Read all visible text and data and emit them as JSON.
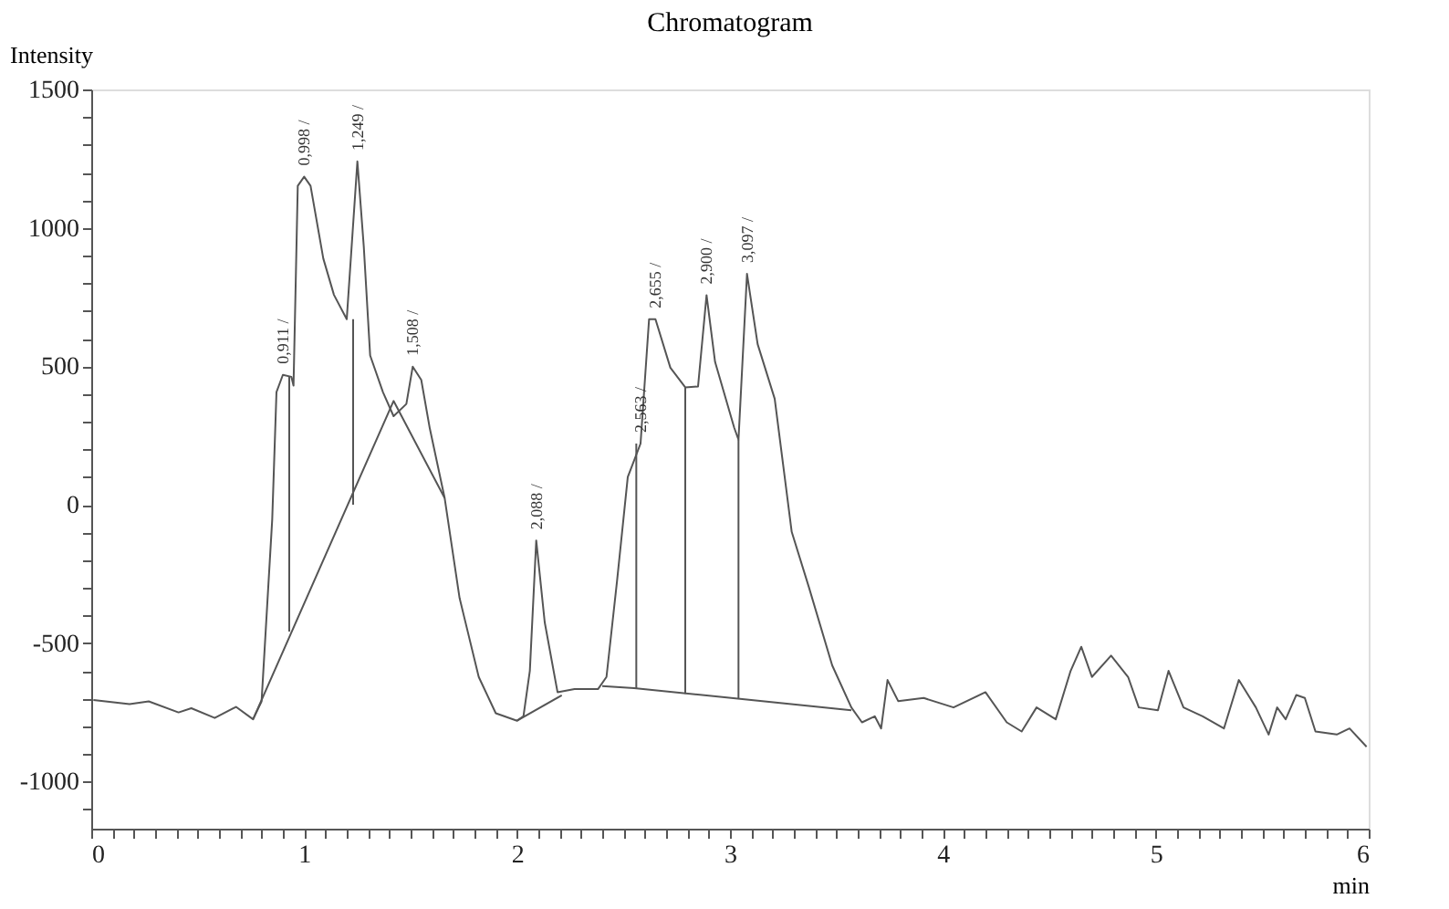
{
  "chart_data": {
    "type": "line",
    "title": "Chromatogram",
    "xlabel": "min",
    "ylabel": "Intensity",
    "xlim": [
      0,
      6
    ],
    "ylim": [
      -1170,
      1500
    ],
    "xticks": [
      0,
      {
        "value": 0.1,
        "label": null
      },
      {
        "value": 0.2,
        "label": null
      },
      {
        "value": 0.3,
        "label": null
      },
      {
        "value": 0.4,
        "label": null
      },
      {
        "value": 0.5,
        "label": null
      },
      {
        "value": 0.6,
        "label": null
      },
      {
        "value": 0.7,
        "label": null
      },
      {
        "value": 0.8,
        "label": null
      },
      {
        "value": 0.9,
        "label": null
      },
      1,
      {
        "value": 1.1,
        "label": null
      },
      {
        "value": 1.2,
        "label": null
      },
      {
        "value": 1.3,
        "label": null
      },
      {
        "value": 1.4,
        "label": null
      },
      {
        "value": 1.5,
        "label": null
      },
      {
        "value": 1.6,
        "label": null
      },
      {
        "value": 1.7,
        "label": null
      },
      {
        "value": 1.8,
        "label": null
      },
      {
        "value": 1.9,
        "label": null
      },
      2,
      {
        "value": 2.1,
        "label": null
      },
      {
        "value": 2.2,
        "label": null
      },
      {
        "value": 2.3,
        "label": null
      },
      {
        "value": 2.4,
        "label": null
      },
      {
        "value": 2.5,
        "label": null
      },
      {
        "value": 2.6,
        "label": null
      },
      {
        "value": 2.7,
        "label": null
      },
      {
        "value": 2.8,
        "label": null
      },
      {
        "value": 2.9,
        "label": null
      },
      3,
      {
        "value": 3.1,
        "label": null
      },
      {
        "value": 3.2,
        "label": null
      },
      {
        "value": 3.3,
        "label": null
      },
      {
        "value": 3.4,
        "label": null
      },
      {
        "value": 3.5,
        "label": null
      },
      {
        "value": 3.6,
        "label": null
      },
      {
        "value": 3.7,
        "label": null
      },
      {
        "value": 3.8,
        "label": null
      },
      {
        "value": 3.9,
        "label": null
      },
      4,
      {
        "value": 4.1,
        "label": null
      },
      {
        "value": 4.2,
        "label": null
      },
      {
        "value": 4.3,
        "label": null
      },
      {
        "value": 4.4,
        "label": null
      },
      {
        "value": 4.5,
        "label": null
      },
      {
        "value": 4.6,
        "label": null
      },
      {
        "value": 4.7,
        "label": null
      },
      {
        "value": 4.8,
        "label": null
      },
      {
        "value": 4.9,
        "label": null
      },
      5,
      {
        "value": 5.1,
        "label": null
      },
      {
        "value": 5.2,
        "label": null
      },
      {
        "value": 5.3,
        "label": null
      },
      {
        "value": 5.4,
        "label": null
      },
      {
        "value": 5.5,
        "label": null
      },
      {
        "value": 5.6,
        "label": null
      },
      {
        "value": 5.7,
        "label": null
      },
      {
        "value": 5.8,
        "label": null
      },
      {
        "value": 5.9,
        "label": null
      },
      6
    ],
    "yticks": [
      -1000,
      {
        "value": -1100,
        "label": null
      },
      {
        "value": -900,
        "label": null
      },
      {
        "value": -800,
        "label": null
      },
      {
        "value": -700,
        "label": null
      },
      {
        "value": -600,
        "label": null
      },
      -500,
      {
        "value": -400,
        "label": null
      },
      {
        "value": -300,
        "label": null
      },
      {
        "value": -200,
        "label": null
      },
      {
        "value": -100,
        "label": null
      },
      0,
      {
        "value": 100,
        "label": null
      },
      {
        "value": 200,
        "label": null
      },
      {
        "value": 300,
        "label": null
      },
      {
        "value": 400,
        "label": null
      },
      500,
      {
        "value": 600,
        "label": null
      },
      {
        "value": 700,
        "label": null
      },
      {
        "value": 800,
        "label": null
      },
      {
        "value": 900,
        "label": null
      },
      1000,
      {
        "value": 1100,
        "label": null
      },
      {
        "value": 1200,
        "label": null
      },
      {
        "value": 1300,
        "label": null
      },
      {
        "value": 1400,
        "label": null
      },
      1500
    ],
    "grid": false,
    "legend": false,
    "marker": "none",
    "line_style": "solid",
    "series": [
      {
        "color": "#555555",
        "x": [
          0.01,
          0.18,
          0.27,
          0.41,
          0.47,
          0.58,
          0.68,
          0.76,
          0.8,
          0.85,
          0.87,
          0.9,
          0.94,
          0.95,
          0.97,
          1.0,
          1.03,
          1.09,
          1.14,
          1.2,
          1.25,
          1.28,
          1.31,
          1.37,
          1.42,
          1.48,
          1.51,
          1.55,
          1.59,
          1.66,
          1.73,
          1.82,
          1.9,
          2.0,
          2.03,
          2.06,
          2.09,
          2.13,
          2.19,
          2.27,
          2.38,
          2.42,
          2.47,
          2.52,
          2.58,
          2.62,
          2.65,
          2.72,
          2.79,
          2.85,
          2.89,
          2.93,
          3.02,
          3.04,
          3.08,
          3.13,
          3.21,
          3.29,
          3.37,
          3.48,
          3.57,
          3.62,
          3.68,
          3.71,
          3.74,
          3.79,
          3.91,
          4.05,
          4.2,
          4.3,
          4.37,
          4.44,
          4.53,
          4.6,
          4.65,
          4.7,
          4.79,
          4.87,
          4.92,
          5.01,
          5.06,
          5.13,
          5.22,
          5.32,
          5.39,
          5.47,
          5.53,
          5.57,
          5.61,
          5.66,
          5.7,
          5.75,
          5.85,
          5.91,
          5.99
        ],
        "values": [
          -705,
          -720,
          -710,
          -750,
          -735,
          -770,
          -730,
          -775,
          -710,
          -53,
          407,
          469,
          462,
          430,
          1152,
          1185,
          1152,
          889,
          758,
          670,
          1240,
          933,
          539,
          407,
          320,
          364,
          499,
          451,
          276,
          24,
          -337,
          -622,
          -753,
          -780,
          -764,
          -600,
          -129,
          -425,
          -677,
          -666,
          -666,
          -622,
          -272,
          100,
          221,
          670,
          670,
          495,
          424,
          427,
          757,
          516,
          278,
          235,
          834,
          580,
          383,
          -98,
          -296,
          -580,
          -732,
          -786,
          -764,
          -808,
          -633,
          -709,
          -698,
          -732,
          -677,
          -786,
          -819,
          -732,
          -775,
          -600,
          -513,
          -622,
          -545,
          -622,
          -732,
          -742,
          -600,
          -732,
          -764,
          -808,
          -633,
          -732,
          -830,
          -732,
          -775,
          -687,
          -698,
          -819,
          -830,
          -808,
          -874
        ]
      },
      {
        "color": "#555555",
        "x": [
          0.76,
          1.42,
          1.66
        ],
        "values": [
          -775,
          375,
          24
        ]
      },
      {
        "color": "#555555",
        "x": [
          2.0,
          2.21
        ],
        "values": [
          -780,
          -688
        ]
      },
      {
        "color": "#555555",
        "x": [
          2.4,
          2.55,
          3.57
        ],
        "values": [
          -655,
          -662,
          -742
        ]
      },
      {
        "color": "#555555",
        "x": [
          0.93,
          0.93
        ],
        "values": [
          462,
          -458
        ]
      },
      {
        "color": "#555555",
        "x": [
          1.23,
          1.23
        ],
        "values": [
          670,
          0
        ]
      },
      {
        "color": "#555555",
        "x": [
          2.56,
          2.56
        ],
        "values": [
          221,
          -662
        ]
      },
      {
        "color": "#555555",
        "x": [
          2.79,
          2.79
        ],
        "values": [
          424,
          -683
        ]
      },
      {
        "color": "#555555",
        "x": [
          3.04,
          3.04
        ],
        "values": [
          235,
          -700
        ]
      }
    ],
    "annotations": [
      {
        "text": "0,911 /",
        "x": 0.9,
        "y": 469
      },
      {
        "text": "0,998 /",
        "x": 1.0,
        "y": 1185
      },
      {
        "text": "1,249 /",
        "x": 1.25,
        "y": 1240
      },
      {
        "text": "1,508 /",
        "x": 1.51,
        "y": 499
      },
      {
        "text": "2,088 /",
        "x": 2.09,
        "y": -129
      },
      {
        "text": "2,563 /",
        "x": 2.58,
        "y": 221
      },
      {
        "text": "2,655 /",
        "x": 2.65,
        "y": 670
      },
      {
        "text": "2,900 /",
        "x": 2.89,
        "y": 757
      },
      {
        "text": "3,097 /",
        "x": 3.08,
        "y": 834
      }
    ]
  }
}
